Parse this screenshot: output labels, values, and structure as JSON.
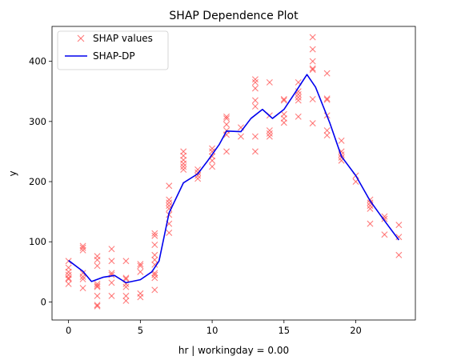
{
  "chart_data": {
    "type": "scatter",
    "title": "SHAP Dependence Plot",
    "xlabel": "hr | workingday = 0.00",
    "ylabel": "y",
    "xlim": [
      -1.15,
      24.15
    ],
    "ylim": [
      -30,
      458
    ],
    "xticks": [
      0,
      5,
      10,
      15,
      20
    ],
    "yticks": [
      0,
      100,
      200,
      300,
      400
    ],
    "grid": false,
    "legend_position": "top-left",
    "colors": {
      "points": "#ff4d4d",
      "line": "#0000ee"
    },
    "series": [
      {
        "name": "SHAP values",
        "kind": "scatter",
        "marker": "x",
        "points": [
          [
            0,
            68
          ],
          [
            0,
            57
          ],
          [
            0,
            50
          ],
          [
            0,
            45
          ],
          [
            0,
            40
          ],
          [
            0,
            38
          ],
          [
            0,
            30
          ],
          [
            1,
            93
          ],
          [
            1,
            90
          ],
          [
            1,
            86
          ],
          [
            1,
            48
          ],
          [
            1,
            42
          ],
          [
            1,
            38
          ],
          [
            1,
            23
          ],
          [
            2,
            76
          ],
          [
            2,
            70
          ],
          [
            2,
            60
          ],
          [
            2,
            30
          ],
          [
            2,
            27
          ],
          [
            2,
            25
          ],
          [
            2,
            10
          ],
          [
            2,
            -5
          ],
          [
            2,
            -7
          ],
          [
            3,
            88
          ],
          [
            3,
            68
          ],
          [
            3,
            48
          ],
          [
            3,
            45
          ],
          [
            3,
            32
          ],
          [
            3,
            10
          ],
          [
            4,
            68
          ],
          [
            4,
            40
          ],
          [
            4,
            38
          ],
          [
            4,
            30
          ],
          [
            4,
            25
          ],
          [
            4,
            10
          ],
          [
            4,
            2
          ],
          [
            5,
            63
          ],
          [
            5,
            60
          ],
          [
            5,
            50
          ],
          [
            5,
            14
          ],
          [
            5,
            8
          ],
          [
            6,
            114
          ],
          [
            6,
            110
          ],
          [
            6,
            95
          ],
          [
            6,
            78
          ],
          [
            6,
            70
          ],
          [
            6,
            62
          ],
          [
            6,
            48
          ],
          [
            6,
            45
          ],
          [
            6,
            40
          ],
          [
            6,
            20
          ],
          [
            7,
            193
          ],
          [
            7,
            170
          ],
          [
            7,
            165
          ],
          [
            7,
            160
          ],
          [
            7,
            155
          ],
          [
            7,
            145
          ],
          [
            7,
            130
          ],
          [
            7,
            115
          ],
          [
            8,
            250
          ],
          [
            8,
            243
          ],
          [
            8,
            236
          ],
          [
            8,
            230
          ],
          [
            8,
            225
          ],
          [
            8,
            220
          ],
          [
            9,
            220
          ],
          [
            9,
            215
          ],
          [
            9,
            210
          ],
          [
            9,
            205
          ],
          [
            10,
            255
          ],
          [
            10,
            250
          ],
          [
            10,
            242
          ],
          [
            10,
            235
          ],
          [
            10,
            225
          ],
          [
            11,
            308
          ],
          [
            11,
            305
          ],
          [
            11,
            295
          ],
          [
            11,
            285
          ],
          [
            11,
            278
          ],
          [
            11,
            250
          ],
          [
            12,
            290
          ],
          [
            12,
            275
          ],
          [
            13,
            370
          ],
          [
            13,
            365
          ],
          [
            13,
            355
          ],
          [
            13,
            335
          ],
          [
            13,
            325
          ],
          [
            13,
            275
          ],
          [
            13,
            250
          ],
          [
            14,
            365
          ],
          [
            14,
            310
          ],
          [
            14,
            285
          ],
          [
            14,
            280
          ],
          [
            14,
            275
          ],
          [
            15,
            337
          ],
          [
            15,
            335
          ],
          [
            15,
            312
          ],
          [
            15,
            305
          ],
          [
            15,
            298
          ],
          [
            16,
            365
          ],
          [
            16,
            350
          ],
          [
            16,
            345
          ],
          [
            16,
            340
          ],
          [
            16,
            335
          ],
          [
            16,
            308
          ],
          [
            17,
            440
          ],
          [
            17,
            420
          ],
          [
            17,
            400
          ],
          [
            17,
            388
          ],
          [
            17,
            386
          ],
          [
            17,
            337
          ],
          [
            17,
            297
          ],
          [
            18,
            380
          ],
          [
            18,
            338
          ],
          [
            18,
            336
          ],
          [
            18,
            310
          ],
          [
            18,
            285
          ],
          [
            18,
            277
          ],
          [
            19,
            268
          ],
          [
            19,
            250
          ],
          [
            19,
            245
          ],
          [
            19,
            240
          ],
          [
            19,
            235
          ],
          [
            20,
            210
          ],
          [
            20,
            200
          ],
          [
            21,
            170
          ],
          [
            21,
            165
          ],
          [
            21,
            160
          ],
          [
            21,
            155
          ],
          [
            21,
            130
          ],
          [
            22,
            142
          ],
          [
            22,
            138
          ],
          [
            22,
            112
          ],
          [
            23,
            128
          ],
          [
            23,
            108
          ],
          [
            23,
            78
          ]
        ]
      },
      {
        "name": "SHAP-DP",
        "kind": "line",
        "points": [
          [
            0,
            69
          ],
          [
            1,
            51
          ],
          [
            1.6,
            34
          ],
          [
            2.4,
            41
          ],
          [
            3.2,
            44
          ],
          [
            4,
            32
          ],
          [
            5,
            37
          ],
          [
            5.8,
            50
          ],
          [
            6.3,
            68
          ],
          [
            7,
            148
          ],
          [
            8,
            198
          ],
          [
            9,
            213
          ],
          [
            9.7,
            235
          ],
          [
            10.5,
            262
          ],
          [
            11,
            284
          ],
          [
            12,
            283
          ],
          [
            12.7,
            305
          ],
          [
            13.5,
            320
          ],
          [
            14.2,
            305
          ],
          [
            15,
            320
          ],
          [
            15.7,
            345
          ],
          [
            16.6,
            378
          ],
          [
            17.2,
            357
          ],
          [
            18.2,
            297
          ],
          [
            19,
            242
          ],
          [
            20,
            210
          ],
          [
            21,
            168
          ],
          [
            22,
            135
          ],
          [
            23,
            103
          ]
        ]
      }
    ]
  }
}
